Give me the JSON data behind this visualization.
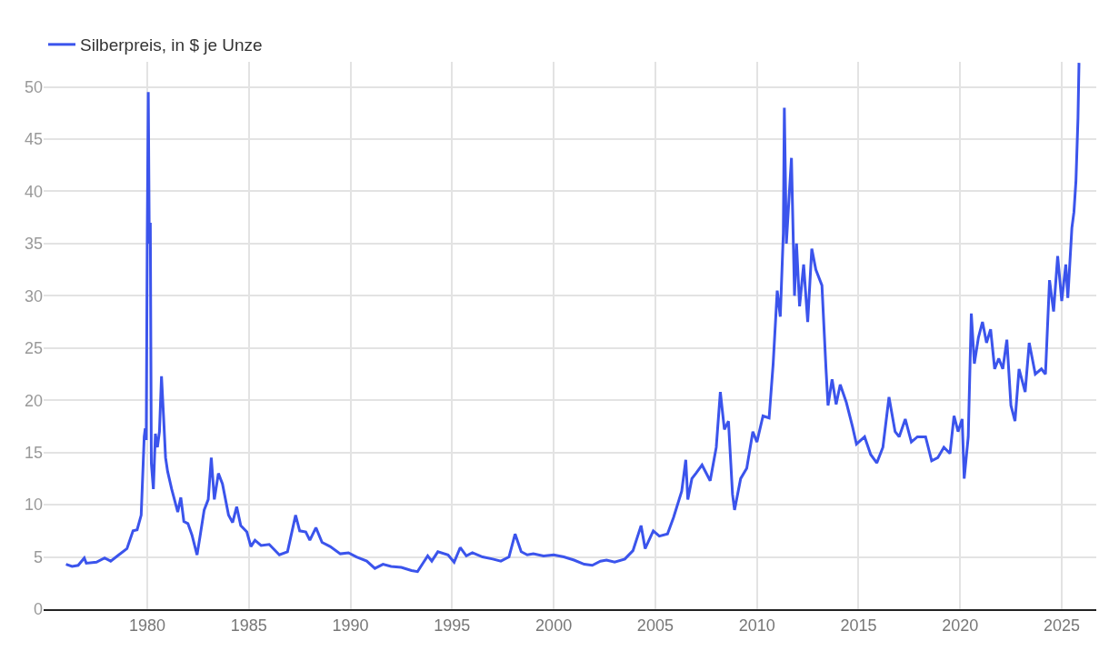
{
  "chart_data": {
    "type": "line",
    "legend": "top left",
    "grid": true,
    "marker": "none",
    "line_style": "solid",
    "xlim": [
      1974.9,
      2026.7
    ],
    "xticks": [
      1980,
      1985,
      1990,
      1995,
      2000,
      2005,
      2010,
      2015,
      2020,
      2025
    ],
    "ylim": [
      0,
      52.4
    ],
    "yticks": [
      0,
      5,
      10,
      15,
      20,
      25,
      30,
      35,
      40,
      45,
      50
    ],
    "x": [
      1976.0,
      1976.3,
      1976.6,
      1976.9,
      1977.0,
      1977.5,
      1977.9,
      1978.2,
      1978.6,
      1979.0,
      1979.3,
      1979.5,
      1979.7,
      1979.85,
      1979.9,
      1979.95,
      1980.0,
      1980.05,
      1980.1,
      1980.15,
      1980.2,
      1980.3,
      1980.4,
      1980.5,
      1980.6,
      1980.7,
      1980.8,
      1980.9,
      1981.0,
      1981.2,
      1981.5,
      1981.65,
      1981.8,
      1982.0,
      1982.2,
      1982.45,
      1982.6,
      1982.8,
      1983.0,
      1983.15,
      1983.3,
      1983.5,
      1983.7,
      1984.0,
      1984.2,
      1984.4,
      1984.6,
      1984.9,
      1985.1,
      1985.3,
      1985.6,
      1986.0,
      1986.5,
      1986.9,
      1987.3,
      1987.5,
      1987.8,
      1988.0,
      1988.3,
      1988.6,
      1989.0,
      1989.5,
      1989.9,
      1990.3,
      1990.8,
      1991.2,
      1991.6,
      1992.0,
      1992.5,
      1993.0,
      1993.3,
      1993.6,
      1993.8,
      1994.0,
      1994.3,
      1994.8,
      1995.1,
      1995.4,
      1995.7,
      1996.0,
      1996.5,
      1997.0,
      1997.4,
      1997.8,
      1998.1,
      1998.4,
      1998.7,
      1999.0,
      1999.5,
      2000.0,
      2000.5,
      2001.0,
      2001.5,
      2001.9,
      2002.3,
      2002.6,
      2003.0,
      2003.5,
      2003.9,
      2004.3,
      2004.5,
      2004.9,
      2005.2,
      2005.6,
      2005.9,
      2006.3,
      2006.5,
      2006.6,
      2006.8,
      2007.0,
      2007.3,
      2007.7,
      2008.0,
      2008.2,
      2008.4,
      2008.6,
      2008.8,
      2008.9,
      2009.2,
      2009.5,
      2009.8,
      2010.0,
      2010.3,
      2010.6,
      2010.8,
      2011.0,
      2011.15,
      2011.3,
      2011.35,
      2011.45,
      2011.6,
      2011.7,
      2011.85,
      2011.95,
      2012.1,
      2012.3,
      2012.5,
      2012.7,
      2012.9,
      2013.2,
      2013.4,
      2013.5,
      2013.7,
      2013.9,
      2014.1,
      2014.4,
      2014.7,
      2014.9,
      2015.3,
      2015.6,
      2015.9,
      2016.2,
      2016.5,
      2016.8,
      2017.0,
      2017.3,
      2017.6,
      2017.9,
      2018.3,
      2018.6,
      2018.9,
      2019.2,
      2019.5,
      2019.7,
      2019.9,
      2020.1,
      2020.2,
      2020.4,
      2020.55,
      2020.7,
      2020.9,
      2021.1,
      2021.3,
      2021.5,
      2021.7,
      2021.9,
      2022.1,
      2022.3,
      2022.5,
      2022.7,
      2022.9,
      2023.2,
      2023.4,
      2023.7,
      2024.0,
      2024.2,
      2024.4,
      2024.6,
      2024.8,
      2025.0,
      2025.2,
      2025.3,
      2025.5,
      2025.6,
      2025.7,
      2025.8,
      2025.85
    ],
    "series": [
      {
        "name": "Silberpreis, in $ je Unze",
        "color": "#3b54ec",
        "values": [
          4.3,
          4.1,
          4.2,
          4.9,
          4.4,
          4.5,
          4.9,
          4.6,
          5.2,
          5.8,
          7.5,
          7.6,
          9.0,
          16.5,
          17.3,
          16.2,
          36,
          49.5,
          35,
          37,
          14.0,
          11.5,
          16.8,
          15.5,
          17.0,
          22.3,
          18.5,
          14.5,
          13.2,
          11.5,
          9.3,
          10.7,
          8.4,
          8.2,
          7.1,
          5.2,
          7.0,
          9.5,
          10.5,
          14.5,
          10.5,
          13.0,
          12.0,
          9.0,
          8.3,
          9.8,
          8.0,
          7.4,
          6.0,
          6.6,
          6.1,
          6.2,
          5.2,
          5.5,
          9.0,
          7.5,
          7.4,
          6.6,
          7.8,
          6.4,
          6.0,
          5.3,
          5.4,
          5.0,
          4.6,
          3.9,
          4.3,
          4.1,
          4.0,
          3.7,
          3.6,
          4.5,
          5.1,
          4.6,
          5.5,
          5.2,
          4.5,
          5.9,
          5.1,
          5.4,
          5.0,
          4.8,
          4.6,
          5.0,
          7.2,
          5.5,
          5.2,
          5.3,
          5.1,
          5.2,
          5.0,
          4.7,
          4.3,
          4.2,
          4.6,
          4.7,
          4.5,
          4.8,
          5.6,
          8.0,
          5.8,
          7.5,
          7.0,
          7.2,
          8.8,
          11.3,
          14.3,
          10.5,
          12.5,
          13.0,
          13.8,
          12.3,
          15.5,
          20.8,
          17.2,
          18.0,
          11.0,
          9.5,
          12.5,
          13.5,
          17.0,
          16.0,
          18.5,
          18.3,
          23.5,
          30.5,
          28,
          36,
          48,
          35,
          40.0,
          43.2,
          30.0,
          35.0,
          29.0,
          33.0,
          27.5,
          34.5,
          32.5,
          31.0,
          23.0,
          19.5,
          22.0,
          19.6,
          21.5,
          19.8,
          17.5,
          15.8,
          16.5,
          14.8,
          14.0,
          15.5,
          20.3,
          17.0,
          16.5,
          18.2,
          16.0,
          16.5,
          16.5,
          14.2,
          14.5,
          15.5,
          14.9,
          18.5,
          17.0,
          18.2,
          12.5,
          16.5,
          28.3,
          23.5,
          26.0,
          27.5,
          25.5,
          26.8,
          23.0,
          24.0,
          23.0,
          25.8,
          19.5,
          18.0,
          23.0,
          20.8,
          25.5,
          22.5,
          23.0,
          22.5,
          31.5,
          28.5,
          33.8,
          29.5,
          33.0,
          29.8,
          36.5,
          38.0,
          41,
          47,
          52.3
        ]
      }
    ]
  }
}
